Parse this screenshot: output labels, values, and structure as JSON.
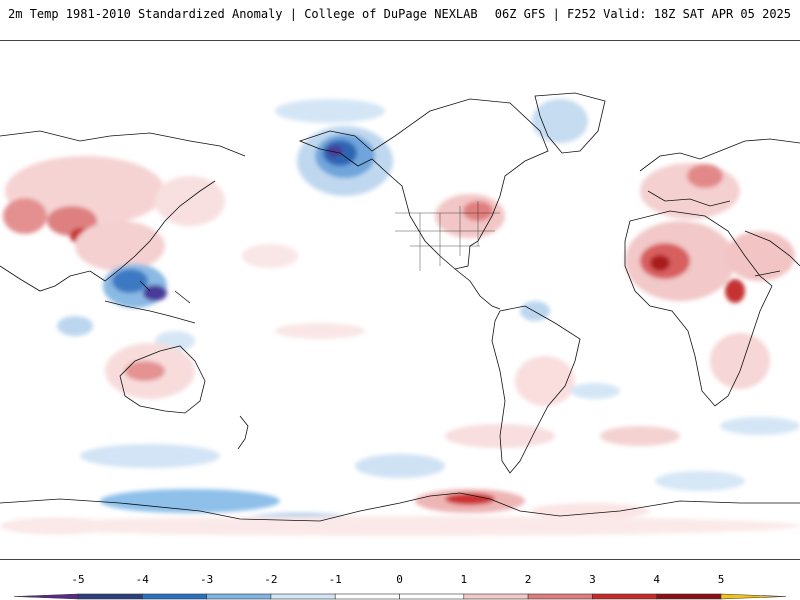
{
  "header": {
    "title_left": "2m Temp 1981-2010 Standardized Anomaly | College of DuPage NEXLAB",
    "title_right": "06Z GFS | F252 Valid: 18Z SAT APR 05 2025"
  },
  "map": {
    "projection": "equirectangular",
    "center_longitude": 180,
    "field": "2m temperature standardized anomaly",
    "features": [
      {
        "region": "Gulf of Alaska / Alaska",
        "anomaly": -3.5
      },
      {
        "region": "Maritime Continent / Philippines",
        "anomaly": -4.5
      },
      {
        "region": "Tibetan Plateau",
        "anomaly": 3.5
      },
      {
        "region": "Central Asia",
        "anomaly": 2
      },
      {
        "region": "Eastern United States",
        "anomaly": 2.5
      },
      {
        "region": "West Africa / Sahel",
        "anomaly": 3.5
      },
      {
        "region": "Europe",
        "anomaly": 2.5
      },
      {
        "region": "Arabian Peninsula / Horn of Africa",
        "anomaly": 3
      },
      {
        "region": "Northern Australia",
        "anomaly": 2
      },
      {
        "region": "Antarctic Peninsula / Weddell Sea",
        "anomaly": 3.5
      },
      {
        "region": "Southern Ocean (Pacific sector)",
        "anomaly": -2.5
      },
      {
        "region": "Greenland",
        "anomaly": -1.5
      }
    ]
  },
  "colorbar": {
    "ticks": [
      "-5",
      "-4",
      "-3",
      "-2",
      "-1",
      "0",
      "1",
      "2",
      "3",
      "4",
      "5"
    ],
    "colors": [
      "#5b2a86",
      "#2c3f7c",
      "#2a72c0",
      "#80b4e3",
      "#d4e6f6",
      "#ffffff",
      "#ffffff",
      "#f3c8c8",
      "#e27c7c",
      "#c62a2a",
      "#8b0f14",
      "#f2c21b"
    ]
  }
}
